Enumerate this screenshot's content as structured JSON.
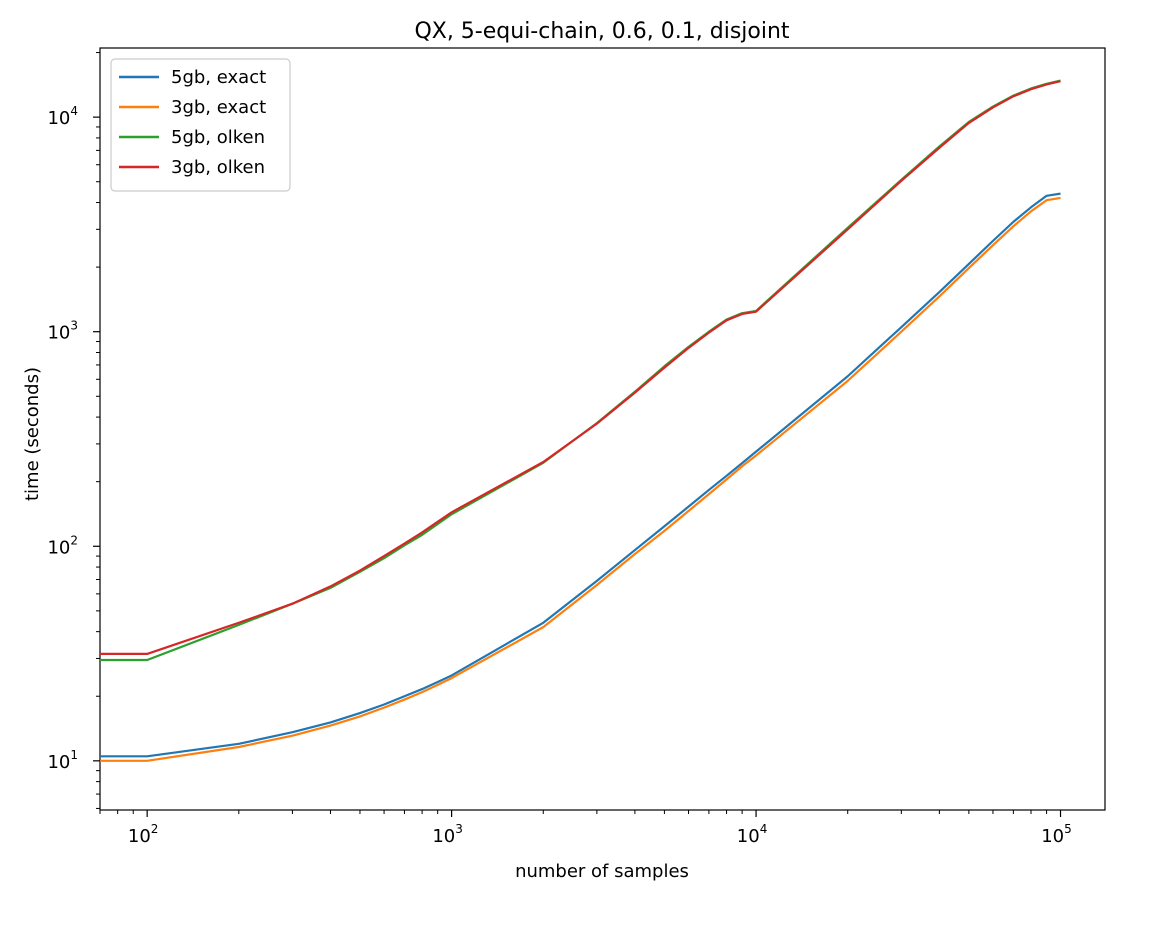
{
  "chart_data": {
    "type": "line",
    "title": "QX, 5-equi-chain, 0.6, 0.1, disjoint",
    "xlabel": "number of samples",
    "ylabel": "time (seconds)",
    "xscale": "log",
    "yscale": "log",
    "xlim": [
      70,
      140000
    ],
    "ylim": [
      5.9,
      21000
    ],
    "legend_position": "top-left",
    "grid": false,
    "x_ticks": [
      {
        "base": "10",
        "exp": "2",
        "value": 100
      },
      {
        "base": "10",
        "exp": "3",
        "value": 1000
      },
      {
        "base": "10",
        "exp": "4",
        "value": 10000
      },
      {
        "base": "10",
        "exp": "5",
        "value": 100000
      }
    ],
    "y_ticks": [
      {
        "base": "10",
        "exp": "1",
        "value": 10
      },
      {
        "base": "10",
        "exp": "2",
        "value": 100
      },
      {
        "base": "10",
        "exp": "3",
        "value": 1000
      },
      {
        "base": "10",
        "exp": "4",
        "value": 10000
      }
    ],
    "x": [
      70,
      100,
      200,
      300,
      400,
      500,
      600,
      700,
      800,
      900,
      1000,
      2000,
      3000,
      4000,
      5000,
      6000,
      7000,
      8000,
      9000,
      10000,
      20000,
      30000,
      40000,
      50000,
      60000,
      70000,
      80000,
      90000,
      100000
    ],
    "series": [
      {
        "name": "5gb, exact",
        "color": "#1f77b4",
        "values": [
          10.5,
          10.5,
          12,
          13.6,
          15.1,
          16.7,
          18.3,
          20,
          21.6,
          23.3,
          25,
          44,
          69,
          96,
          124,
          153,
          183,
          213,
          244,
          276,
          620,
          1050,
          1530,
          2070,
          2650,
          3250,
          3800,
          4300,
          4400
        ]
      },
      {
        "name": "3gb, exact",
        "color": "#ff7f0e",
        "values": [
          10,
          10,
          11.6,
          13.1,
          14.6,
          16.1,
          17.7,
          19.3,
          20.9,
          22.6,
          24.3,
          42,
          66,
          92,
          118,
          146,
          175,
          205,
          236,
          265,
          590,
          1000,
          1460,
          1980,
          2530,
          3100,
          3640,
          4100,
          4200
        ]
      },
      {
        "name": "5gb, olken",
        "color": "#2ca02c",
        "values": [
          29.5,
          29.5,
          43,
          54,
          64,
          76,
          88,
          101,
          113,
          127,
          141,
          245,
          375,
          525,
          690,
          850,
          1000,
          1140,
          1220,
          1250,
          3050,
          5100,
          7300,
          9500,
          11200,
          12600,
          13600,
          14300,
          14800
        ]
      },
      {
        "name": "3gb, olken",
        "color": "#d62728",
        "values": [
          31.5,
          31.5,
          44,
          54,
          65,
          77,
          90,
          103,
          116,
          130,
          144,
          247,
          373,
          520,
          680,
          840,
          990,
          1130,
          1210,
          1240,
          3000,
          5050,
          7200,
          9400,
          11100,
          12500,
          13500,
          14200,
          14700
        ]
      }
    ]
  }
}
